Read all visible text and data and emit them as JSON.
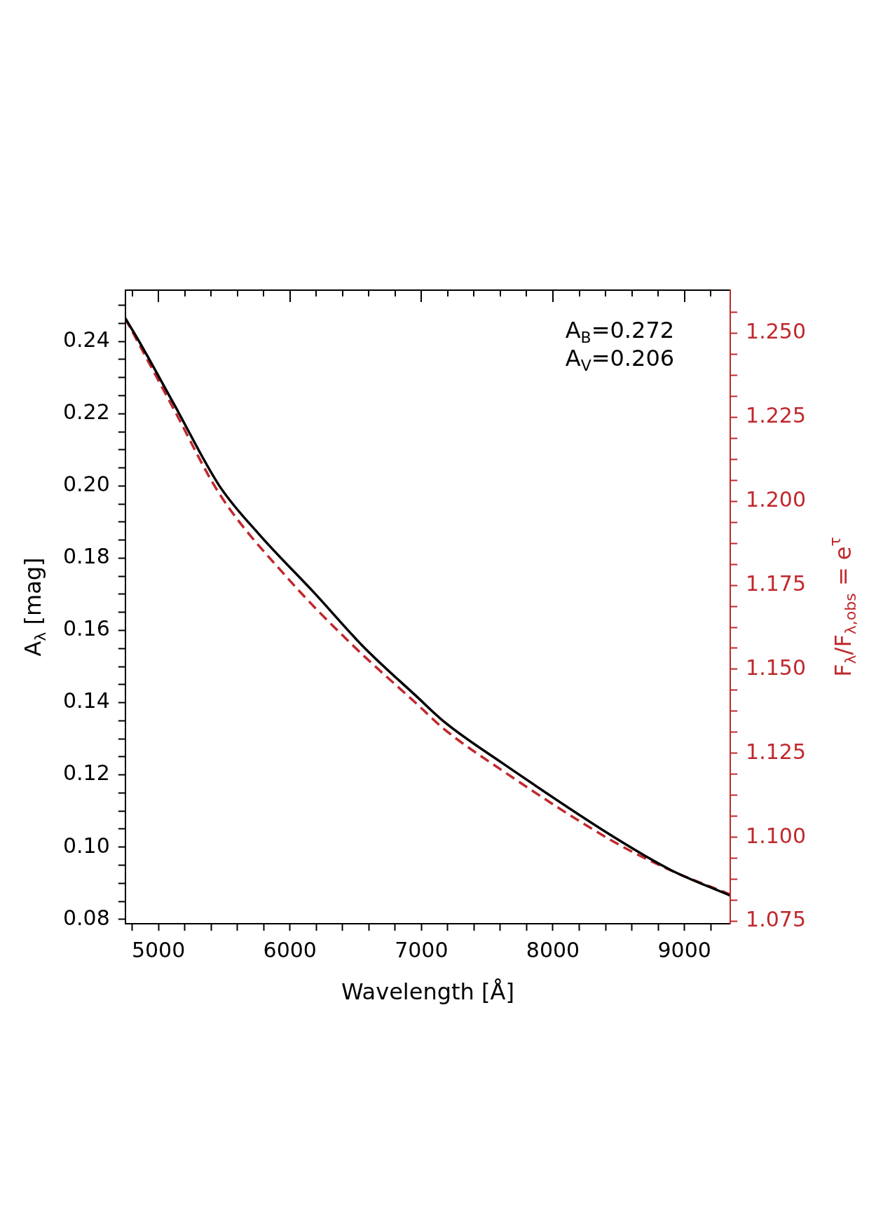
{
  "chart_data": {
    "type": "line",
    "xlabel": "Wavelength [Å]",
    "ylabel": "A$_{λ}$ [mag]",
    "y2label": "F$_{λ}$/F$_{λ,obs}$ = e$^{τ}$",
    "annotations": [
      "A$_{B}$=0.272",
      "A$_{V}$=0.206"
    ],
    "marker": "none",
    "legend": false,
    "xlim": [
      4748,
      9349
    ],
    "xticks": [
      {
        "value": 4800,
        "label": null
      },
      5000,
      {
        "value": 5200,
        "label": null
      },
      {
        "value": 5400,
        "label": null
      },
      {
        "value": 5600,
        "label": null
      },
      {
        "value": 5800,
        "label": null
      },
      6000,
      {
        "value": 6200,
        "label": null
      },
      {
        "value": 6400,
        "label": null
      },
      {
        "value": 6600,
        "label": null
      },
      {
        "value": 6800,
        "label": null
      },
      7000,
      {
        "value": 7200,
        "label": null
      },
      {
        "value": 7400,
        "label": null
      },
      {
        "value": 7600,
        "label": null
      },
      {
        "value": 7800,
        "label": null
      },
      8000,
      {
        "value": 8200,
        "label": null
      },
      {
        "value": 8400,
        "label": null
      },
      {
        "value": 8600,
        "label": null
      },
      {
        "value": 8800,
        "label": null
      },
      9000,
      {
        "value": 9200,
        "label": null
      }
    ],
    "ylim": [
      0.0788,
      0.2542
    ],
    "yticks": [
      {
        "value": 0.08,
        "label": "0.08"
      },
      {
        "value": 0.085,
        "label": null
      },
      {
        "value": 0.09,
        "label": null
      },
      {
        "value": 0.095,
        "label": null
      },
      {
        "value": 0.1,
        "label": "0.10"
      },
      {
        "value": 0.105,
        "label": null
      },
      {
        "value": 0.11,
        "label": null
      },
      {
        "value": 0.115,
        "label": null
      },
      {
        "value": 0.12,
        "label": "0.12"
      },
      {
        "value": 0.125,
        "label": null
      },
      {
        "value": 0.13,
        "label": null
      },
      {
        "value": 0.135,
        "label": null
      },
      {
        "value": 0.14,
        "label": "0.14"
      },
      {
        "value": 0.145,
        "label": null
      },
      {
        "value": 0.15,
        "label": null
      },
      {
        "value": 0.155,
        "label": null
      },
      {
        "value": 0.16,
        "label": "0.16"
      },
      {
        "value": 0.165,
        "label": null
      },
      {
        "value": 0.17,
        "label": null
      },
      {
        "value": 0.175,
        "label": null
      },
      {
        "value": 0.18,
        "label": "0.18"
      },
      {
        "value": 0.185,
        "label": null
      },
      {
        "value": 0.19,
        "label": null
      },
      {
        "value": 0.195,
        "label": null
      },
      {
        "value": 0.2,
        "label": "0.20"
      },
      {
        "value": 0.205,
        "label": null
      },
      {
        "value": 0.21,
        "label": null
      },
      {
        "value": 0.215,
        "label": null
      },
      {
        "value": 0.22,
        "label": "0.22"
      },
      {
        "value": 0.225,
        "label": null
      },
      {
        "value": 0.23,
        "label": null
      },
      {
        "value": 0.235,
        "label": null
      },
      {
        "value": 0.24,
        "label": "0.24"
      },
      {
        "value": 0.245,
        "label": null
      },
      {
        "value": 0.25,
        "label": null
      }
    ],
    "y2lim": [
      1.0743,
      1.2628
    ],
    "y2ticks": [
      {
        "value": 1.075,
        "label": "1.075"
      },
      {
        "value": 1.08125,
        "label": null
      },
      {
        "value": 1.0875,
        "label": null
      },
      {
        "value": 1.09375,
        "label": null
      },
      {
        "value": 1.1,
        "label": "1.100"
      },
      {
        "value": 1.10625,
        "label": null
      },
      {
        "value": 1.1125,
        "label": null
      },
      {
        "value": 1.11875,
        "label": null
      },
      {
        "value": 1.125,
        "label": "1.125"
      },
      {
        "value": 1.13125,
        "label": null
      },
      {
        "value": 1.1375,
        "label": null
      },
      {
        "value": 1.14375,
        "label": null
      },
      {
        "value": 1.15,
        "label": "1.150"
      },
      {
        "value": 1.15625,
        "label": null
      },
      {
        "value": 1.1625,
        "label": null
      },
      {
        "value": 1.16875,
        "label": null
      },
      {
        "value": 1.175,
        "label": "1.175"
      },
      {
        "value": 1.18125,
        "label": null
      },
      {
        "value": 1.1875,
        "label": null
      },
      {
        "value": 1.19375,
        "label": null
      },
      {
        "value": 1.2,
        "label": "1.200"
      },
      {
        "value": 1.20625,
        "label": null
      },
      {
        "value": 1.2125,
        "label": null
      },
      {
        "value": 1.21875,
        "label": null
      },
      {
        "value": 1.225,
        "label": "1.225"
      },
      {
        "value": 1.23125,
        "label": null
      },
      {
        "value": 1.2375,
        "label": null
      },
      {
        "value": 1.24375,
        "label": null
      },
      {
        "value": 1.25,
        "label": "1.250"
      },
      {
        "value": 1.25625,
        "label": null
      }
    ],
    "series": [
      {
        "color": "#000000",
        "line_style": "solid",
        "x": [
          4748,
          4844,
          5122,
          5464,
          5763,
          6190,
          6553,
          6976,
          7173,
          7618,
          8472,
          8900,
          9349
        ],
        "values": [
          0.2464,
          0.2406,
          0.2224,
          0.2,
          0.1867,
          0.1702,
          0.1557,
          0.1413,
          0.1347,
          0.1232,
          0.1026,
          0.0936,
          0.0866
        ]
      },
      {
        "color": "#c0282d",
        "line_style": "dashed",
        "axis": "y2",
        "x": [
          4748,
          5122,
          5464,
          5976,
          6468,
          6976,
          7173,
          7618,
          8472,
          8900,
          9349
        ],
        "values": [
          1.2544,
          1.227,
          1.2022,
          1.1774,
          1.1575,
          1.1393,
          1.1322,
          1.1198,
          1.0985,
          1.0901,
          1.083
        ]
      }
    ]
  }
}
